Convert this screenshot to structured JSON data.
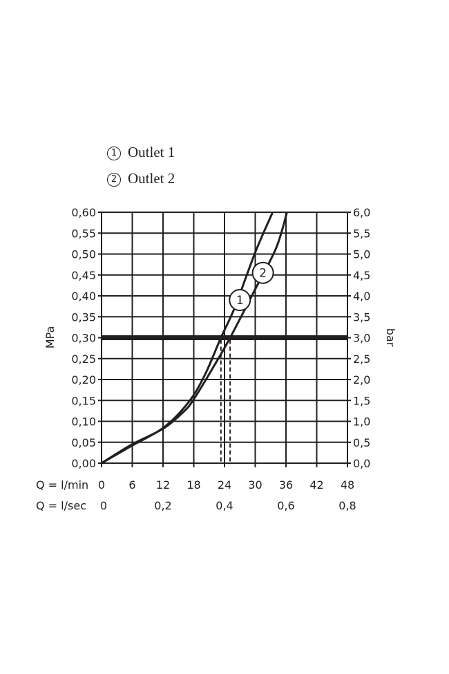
{
  "legend": [
    {
      "symbol": "1",
      "label": "Outlet 1"
    },
    {
      "symbol": "2",
      "label": "Outlet 2"
    }
  ],
  "chart_data": {
    "type": "line",
    "ylabel_left": "MPa",
    "ylabel_right": "bar",
    "xlabel_row1": "Q = l/min",
    "xlabel_row2": "Q = l/sec",
    "xlim": [
      0,
      48
    ],
    "ylim": [
      0,
      0.6
    ],
    "xticks_lmin": [
      "0",
      "6",
      "12",
      "18",
      "24",
      "30",
      "36",
      "42",
      "48"
    ],
    "xticks_lsec": [
      {
        "v": 0,
        "label": "0"
      },
      {
        "v": 12,
        "label": "0,2"
      },
      {
        "v": 24,
        "label": "0,4"
      },
      {
        "v": 36,
        "label": "0,6"
      },
      {
        "v": 48,
        "label": "0,8"
      }
    ],
    "yticks_mpa": [
      "0,00",
      "0,05",
      "0,10",
      "0,15",
      "0,20",
      "0,25",
      "0,30",
      "0,35",
      "0,40",
      "0,45",
      "0,50",
      "0,55",
      "0,60"
    ],
    "yticks_bar": [
      "0,0",
      "0,5",
      "1,0",
      "1,5",
      "2,0",
      "2,5",
      "3,0",
      "3,5",
      "4,0",
      "4,5",
      "5,0",
      "5,5",
      "6,0"
    ],
    "grid": true,
    "reference_line": {
      "y": 0.3
    },
    "series": [
      {
        "name": "1",
        "x": [
          0,
          5.8,
          12.1,
          17,
          20.2,
          23.3,
          26,
          30,
          33.4
        ],
        "y": [
          0,
          0.041,
          0.085,
          0.146,
          0.212,
          0.3,
          0.372,
          0.504,
          0.6
        ],
        "marker_at": [
          27,
          0.39
        ],
        "flow_at_ref": 23.3
      },
      {
        "name": "2",
        "x": [
          0,
          5.8,
          12.1,
          16.1,
          17.9,
          21.5,
          25.1,
          30,
          34.1,
          36.2
        ],
        "y": [
          0,
          0.044,
          0.083,
          0.124,
          0.151,
          0.223,
          0.3,
          0.416,
          0.515,
          0.6
        ],
        "marker_at": [
          31.5,
          0.455
        ],
        "flow_at_ref": 25.1
      }
    ]
  }
}
